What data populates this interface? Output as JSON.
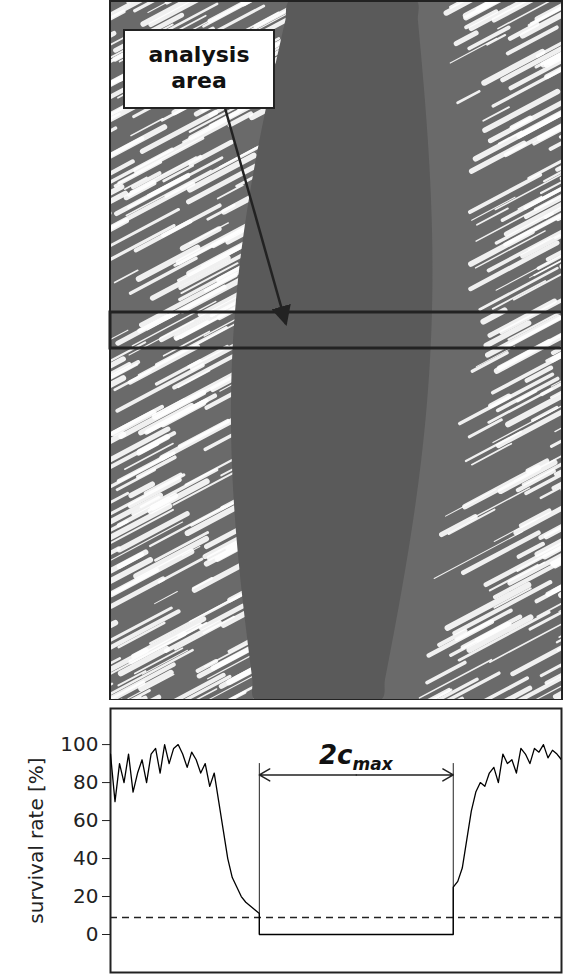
{
  "image": {
    "annotation": "analysis area"
  },
  "chart_data": {
    "type": "line",
    "y_label": "survival rate [%]",
    "x": [
      0,
      1,
      2,
      3,
      4,
      5,
      6,
      7,
      8,
      9,
      10,
      11,
      12,
      13,
      14,
      15,
      16,
      17,
      18,
      19,
      20,
      21,
      22,
      23,
      24,
      25,
      26,
      27,
      28,
      29,
      30,
      31,
      32,
      33,
      33,
      76,
      76,
      77,
      78,
      79,
      80,
      81,
      82,
      83,
      84,
      85,
      86,
      87,
      88,
      89,
      90,
      91,
      92,
      93,
      94,
      95,
      96,
      97,
      98,
      99,
      100
    ],
    "values": [
      95,
      70,
      90,
      80,
      95,
      75,
      85,
      92,
      80,
      95,
      98,
      85,
      100,
      90,
      98,
      100,
      95,
      88,
      96,
      92,
      85,
      90,
      78,
      85,
      70,
      55,
      40,
      30,
      25,
      20,
      17,
      15,
      13,
      11,
      0,
      0,
      25,
      28,
      35,
      50,
      65,
      75,
      80,
      78,
      85,
      88,
      80,
      95,
      90,
      92,
      85,
      98,
      95,
      90,
      98,
      96,
      100,
      93,
      97,
      95,
      92
    ],
    "color": "#000000",
    "xlim": [
      0,
      100
    ],
    "ylim": [
      -20,
      119
    ],
    "yticks": [
      0,
      20,
      40,
      60,
      80,
      100
    ],
    "tick_labels": "y",
    "grid": false,
    "threshold": {
      "value": 9,
      "line_style": "dashed"
    },
    "annotations": [
      {
        "text": "2c",
        "subscript": "max",
        "x_start": 33,
        "x_end": 76,
        "y": 84
      }
    ]
  }
}
